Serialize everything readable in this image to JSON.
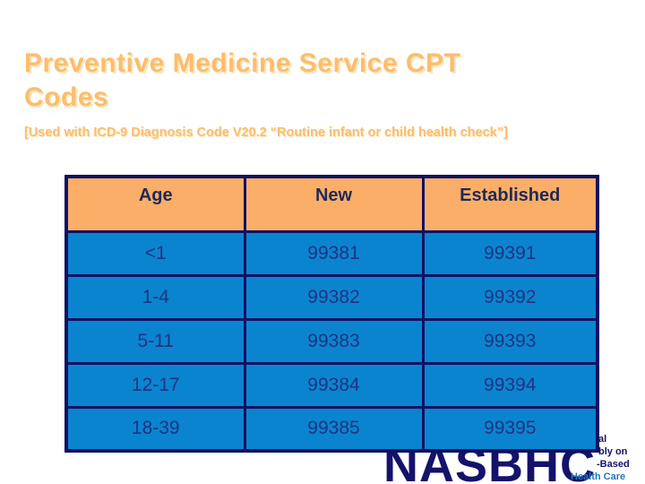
{
  "slide": {
    "title": "Preventive Medicine Service CPT Codes",
    "subtitle": "[Used with ICD-9 Diagnosis Code V20.2 “Routine infant or child health check”]"
  },
  "table": {
    "headers": {
      "age": "Age",
      "new": "New",
      "established": "Established"
    },
    "rows": [
      {
        "age": "<1",
        "new": "99381",
        "established": "99391"
      },
      {
        "age": "1-4",
        "new": "99382",
        "established": "99392"
      },
      {
        "age": "5-11",
        "new": "99383",
        "established": "99393"
      },
      {
        "age": "12-17",
        "new": "99384",
        "established": "99394"
      },
      {
        "age": "18-39",
        "new": "99385",
        "established": "99395"
      }
    ]
  },
  "logo": {
    "big_text": "NASBHC",
    "fragments": [
      "al",
      "bly on",
      "-Based",
      "Health Care"
    ]
  },
  "colors": {
    "title_orange": "#fcbd6e",
    "header_orange": "#fbae68",
    "cell_blue": "#0b84cf",
    "border_navy": "#0e1162",
    "header_text_navy": "#1f2a56",
    "data_text_navy": "#1d3383",
    "logo_navy": "#14126b",
    "logo_health_blue": "#2377bd"
  }
}
